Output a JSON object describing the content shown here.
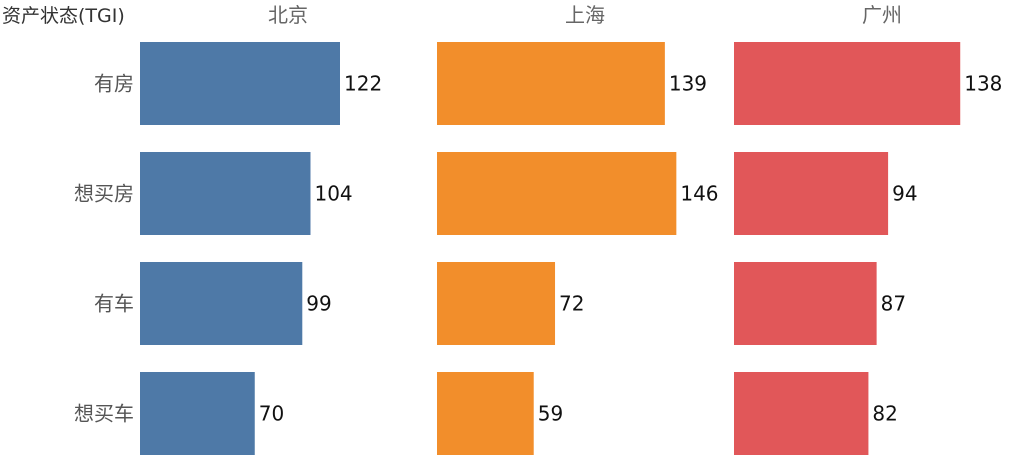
{
  "chart_data": {
    "type": "bar",
    "orientation": "horizontal",
    "title": "资产状态(TGI)",
    "categories": [
      "有房",
      "想买房",
      "有车",
      "想买车"
    ],
    "series": [
      {
        "name": "北京",
        "values": [
          122,
          104,
          99,
          70
        ],
        "color": "#4e79a7"
      },
      {
        "name": "上海",
        "values": [
          139,
          146,
          72,
          59
        ],
        "color": "#f28e2b"
      },
      {
        "name": "广州",
        "values": [
          138,
          94,
          87,
          82
        ],
        "color": "#e15759"
      }
    ],
    "xlim": [
      0,
      150
    ],
    "grid": false,
    "legend": "none"
  }
}
